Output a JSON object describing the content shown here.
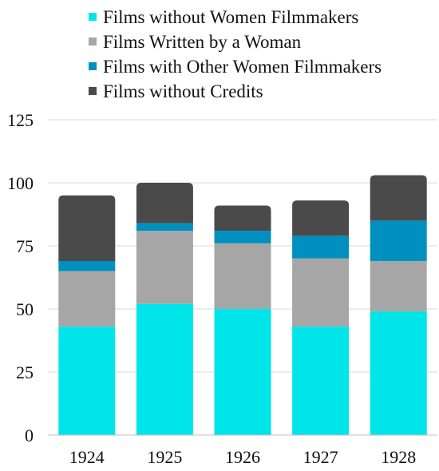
{
  "chart_data": {
    "type": "bar",
    "stacked": true,
    "categories": [
      "1924",
      "1925",
      "1926",
      "1927",
      "1928"
    ],
    "series": [
      {
        "name": "Films without Women Filmmakers",
        "color": "#00e5ea",
        "values": [
          43,
          52,
          50,
          43,
          49
        ]
      },
      {
        "name": "Films Written by a Woman",
        "color": "#a6a6a6",
        "values": [
          22,
          29,
          26,
          27,
          20
        ]
      },
      {
        "name": "Films with Other Women Filmmakers",
        "color": "#0090c0",
        "values": [
          4,
          3,
          5,
          9,
          16
        ]
      },
      {
        "name": "Films without Credits",
        "color": "#4a4a4a",
        "values": [
          26,
          16,
          10,
          14,
          18
        ]
      }
    ],
    "y_ticks": [
      "0",
      "25",
      "50",
      "75",
      "100",
      "125"
    ],
    "ylim": [
      0,
      125
    ],
    "grid": true,
    "legend_position": "top"
  }
}
